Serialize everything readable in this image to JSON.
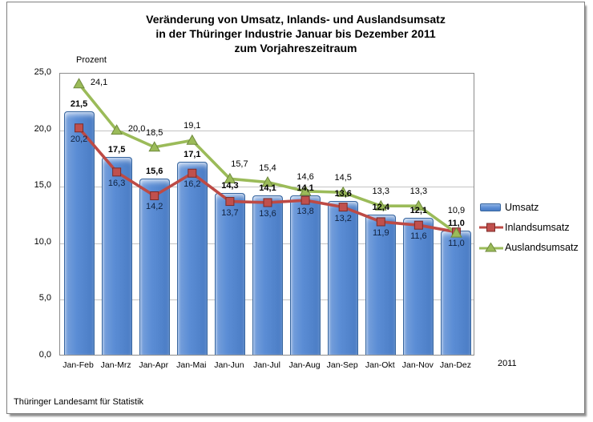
{
  "title": {
    "line1": "Veränderung  von Umsatz, Inlands- und Auslandsumsatz",
    "line2": "in der Thüringer Industrie Januar bis  Dezember 2011",
    "line3": "zum Vorjahreszeitraum"
  },
  "unit_label": "Prozent",
  "year_label": "2011",
  "footer": "Thüringer Landesamt für Statistik",
  "colors": {
    "bar_fill": "#5b8dd5",
    "bar_border": "#38669f",
    "inland_line": "#bd4a45",
    "inland_marker_fill": "#c0504d",
    "inland_marker_border": "#7c2b28",
    "ausland_line": "#9bbb59",
    "ausland_marker_fill": "#9bbb59",
    "ausland_marker_border": "#6f8a3d",
    "gridline": "#c3c3c3",
    "plot_border": "#8c8c8c"
  },
  "chart_data": {
    "type": "bar",
    "title": "Veränderung von Umsatz, Inlands- und Auslandsumsatz in der Thüringer Industrie Januar bis Dezember 2011 zum Vorjahreszeitraum",
    "xlabel": "2011",
    "ylabel": "Prozent",
    "ylim": [
      0,
      25
    ],
    "ytick_values": [
      0,
      5,
      10,
      15,
      20,
      25
    ],
    "ytick_labels": [
      "0,0",
      "5,0",
      "10,0",
      "15,0",
      "20,0",
      "25,0"
    ],
    "grid": true,
    "legend_position": "right",
    "categories": [
      "Jan-Feb",
      "Jan-Mrz",
      "Jan-Apr",
      "Jan-Mai",
      "Jan-Jun",
      "Jan-Jul",
      "Jan-Aug",
      "Jan-Sep",
      "Jan-Okt",
      "Jan-Nov",
      "Jan-Dez"
    ],
    "series": [
      {
        "name": "Umsatz",
        "type": "bar",
        "values": [
          21.5,
          17.5,
          15.6,
          17.1,
          14.3,
          14.1,
          14.1,
          13.6,
          12.4,
          12.1,
          11.0
        ],
        "labels": [
          "21,5",
          "17,5",
          "15,6",
          "17,1",
          "14,3",
          "14,1",
          "14,1",
          "13,6",
          "12,4",
          "12,1",
          "11,0"
        ]
      },
      {
        "name": "Inlandsumsatz",
        "type": "line",
        "marker": "square",
        "values": [
          20.2,
          16.3,
          14.2,
          16.2,
          13.7,
          13.6,
          13.8,
          13.2,
          11.9,
          11.6,
          11.0
        ],
        "labels": [
          "20,2",
          "16,3",
          "14,2",
          "16,2",
          "13,7",
          "13,6",
          "13,8",
          "13,2",
          "11,9",
          "11,6",
          "11,0"
        ]
      },
      {
        "name": "Auslandsumsatz",
        "type": "line",
        "marker": "triangle",
        "values": [
          24.1,
          20.0,
          18.5,
          19.1,
          15.7,
          15.4,
          14.6,
          14.5,
          13.3,
          13.3,
          10.9
        ],
        "labels": [
          "24,1",
          "20,0",
          "18,5",
          "19,1",
          "15,7",
          "15,4",
          "14,6",
          "14,5",
          "13,3",
          "13,3",
          "10,9"
        ]
      }
    ]
  }
}
